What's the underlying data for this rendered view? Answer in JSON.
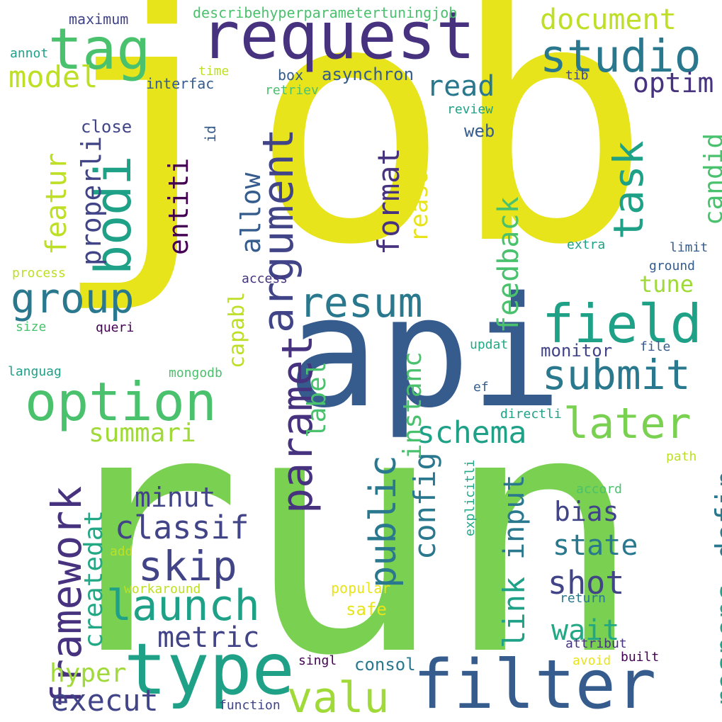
{
  "colors": {
    "yellow": "#e8e41c",
    "lime": "#7ad151",
    "lightGreen": "#a0da39",
    "green": "#4ac16d",
    "teal": "#1fa187",
    "cyan": "#2a788e",
    "blue": "#365c8d",
    "indigo": "#414487",
    "purple": "#46327e",
    "darkPurple": "#440154",
    "seaGreen": "#22a884",
    "paleGreen": "#bddf26"
  },
  "words": [
    "job",
    "run",
    "api",
    "request",
    "tag",
    "filter",
    "type",
    "option",
    "field",
    "studio",
    "submit",
    "bodi",
    "group",
    "argument",
    "paramet",
    "resum",
    "task",
    "launch",
    "valu",
    "later",
    "framework",
    "skip",
    "public",
    "classif",
    "execut",
    "metric",
    "schema",
    "feedback",
    "format",
    "input",
    "config",
    "link",
    "defin",
    "respons",
    "shot",
    "wait",
    "state",
    "bias",
    "minut",
    "summari",
    "createdat",
    "hyper",
    "instanc",
    "label",
    "capabl",
    "allow",
    "entiti",
    "properli",
    "featur",
    "model",
    "document",
    "read",
    "optim",
    "candid",
    "reason",
    "tune",
    "monitor",
    "consol",
    "safe",
    "popular",
    "close",
    "web",
    "asynchron",
    "describehyperparametertuningjob",
    "maximum",
    "annot",
    "time",
    "interfac",
    "retriev",
    "box",
    "tib",
    "review",
    "id",
    "extra",
    "limit",
    "ground",
    "process",
    "access",
    "size",
    "queri",
    "languag",
    "mongodb",
    "updat",
    "file",
    "ef",
    "directli",
    "path",
    "accord",
    "explicitli",
    "add",
    "workaround",
    "return",
    "attribut",
    "avoid",
    "built",
    "singl",
    "function"
  ]
}
